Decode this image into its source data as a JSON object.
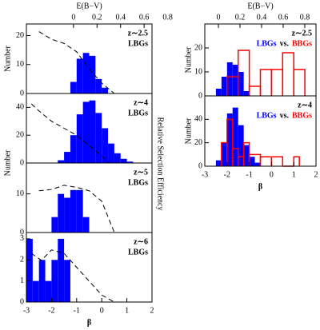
{
  "y2label": "Relative Selection Efficiency",
  "chart_data": [
    {
      "type": "histogram",
      "annotation": "z∼2.5",
      "xlim": [
        -3,
        2
      ],
      "ylim": [
        0,
        24
      ],
      "yticks": [
        0,
        10,
        20
      ],
      "ylabel": "Number",
      "x2label": "E(B−V)",
      "x2lim": [
        -0.4,
        0.667
      ],
      "x2ticks": [
        0,
        0.2,
        0.4,
        0.6,
        0.8
      ],
      "y2lim": [
        0,
        1
      ],
      "series": [
        {
          "name": "LBGs",
          "color": "#0000ff",
          "fill": true,
          "bins": [
            -1.25,
            -1,
            -0.75,
            -0.5,
            -0.25,
            0,
            0.25
          ],
          "values": [
            4,
            12,
            14,
            13,
            5,
            2
          ]
        },
        {
          "type": "line",
          "axis": "y2",
          "color": "#000000",
          "dashed": true,
          "x": [
            -2.5,
            -2,
            -1.5,
            -1,
            -0.5,
            0,
            0.5
          ],
          "values": [
            0.89,
            0.78,
            0.72,
            0.6,
            0.35,
            0.15,
            0
          ]
        }
      ]
    },
    {
      "type": "histogram",
      "annotation": "z∼4",
      "xlim": [
        -3,
        2
      ],
      "ylim": [
        0,
        50
      ],
      "yticks": [
        0,
        20,
        40
      ],
      "ylabel": "Number",
      "y2lim": [
        0,
        1
      ],
      "series": [
        {
          "name": "LBGs",
          "color": "#0000ff",
          "fill": true,
          "bins": [
            -1.75,
            -1.5,
            -1.25,
            -1,
            -0.75,
            -0.5,
            -0.25,
            0,
            0.25,
            0.5,
            0.75,
            1,
            1.25
          ],
          "values": [
            2,
            8,
            20,
            35,
            44,
            45,
            36,
            25,
            14,
            7,
            3,
            1
          ]
        },
        {
          "type": "line",
          "axis": "y2",
          "color": "#000000",
          "dashed": true,
          "x": [
            -2.8,
            -2.5,
            -2,
            -1.5,
            -1,
            -0.5,
            0,
            0.3
          ],
          "values": [
            0.85,
            0.75,
            0.6,
            0.5,
            0.4,
            0.25,
            0.1,
            0
          ]
        }
      ]
    },
    {
      "type": "histogram",
      "annotation": "z∼5",
      "xlim": [
        -3,
        2
      ],
      "ylim": [
        0,
        18
      ],
      "yticks": [
        0,
        10
      ],
      "y2lim": [
        0,
        1
      ],
      "series": [
        {
          "name": "LBGs",
          "color": "#0000ff",
          "fill": true,
          "bins": [
            -2,
            -1.75,
            -1.5,
            -1.25,
            -1,
            -0.75,
            -0.5
          ],
          "values": [
            4,
            10,
            9,
            11,
            11,
            4
          ]
        },
        {
          "type": "line",
          "axis": "y2",
          "color": "#000000",
          "dashed": true,
          "x": [
            -2.5,
            -2,
            -1.5,
            -1,
            -0.5,
            0,
            0.5
          ],
          "values": [
            0.6,
            0.62,
            0.68,
            0.65,
            0.6,
            0.45,
            0
          ]
        }
      ]
    },
    {
      "type": "histogram",
      "annotation": "z∼6",
      "xlim": [
        -3,
        2
      ],
      "ylim": [
        0,
        3.3
      ],
      "yticks": [
        0,
        1,
        2,
        3
      ],
      "xticks": [
        -3,
        -2,
        -1,
        0,
        1,
        2
      ],
      "xlabel": "β",
      "y2lim": [
        0,
        1
      ],
      "series": [
        {
          "name": "LBGs",
          "color": "#0000ff",
          "fill": true,
          "bins": [
            -3,
            -2.75,
            -2.5,
            -2.25,
            -2,
            -1.75,
            -1.5,
            -1.25
          ],
          "values": [
            3,
            1,
            2,
            1,
            2,
            3,
            2
          ]
        },
        {
          "type": "line",
          "axis": "y2",
          "color": "#000000",
          "dashed": true,
          "x": [
            -2.8,
            -2.4,
            -2,
            -1.5,
            -1,
            -0.5,
            0,
            0.5
          ],
          "values": [
            0.7,
            0.6,
            0.75,
            0.7,
            0.5,
            0.3,
            0.1,
            0
          ]
        }
      ]
    },
    {
      "type": "histogram",
      "annotation": "z∼2.5",
      "xlim": [
        -3,
        2
      ],
      "ylim": [
        0,
        30
      ],
      "yticks": [
        0,
        10,
        20
      ],
      "ylabel": "Number",
      "x2label": "E(B−V)",
      "x2lim": [
        -0.126,
        0.904
      ],
      "x2ticks": [
        0,
        0.2,
        0.4,
        0.6,
        0.8
      ],
      "legend_joiner": "vs.",
      "legend_colored": true,
      "series": [
        {
          "name": "LBGs",
          "color": "#0000ff",
          "fill": true,
          "bins": [
            -2.5,
            -2.25,
            -2,
            -1.75,
            -1.5,
            -1.25,
            -1
          ],
          "values": [
            3,
            8,
            14,
            13,
            10,
            2
          ]
        },
        {
          "name": "BBGs",
          "color": "#ff0000",
          "fill": false,
          "bins": [
            -2,
            -1.5,
            -1,
            -0.5,
            0,
            0.5,
            1,
            1.5
          ],
          "values": [
            8,
            19,
            4,
            11,
            11,
            18,
            11
          ]
        }
      ]
    },
    {
      "type": "histogram",
      "annotation": "z∼4",
      "xlim": [
        -3,
        2
      ],
      "ylim": [
        0,
        60
      ],
      "yticks": [
        0,
        20,
        40
      ],
      "ylabel": "Number",
      "xticks": [
        -3,
        -2,
        -1,
        0,
        1,
        2
      ],
      "xlabel": "β",
      "legend_joiner": "vs.",
      "legend_colored": true,
      "series": [
        {
          "name": "LBGs",
          "color": "#0000ff",
          "fill": true,
          "bins": [
            -2.5,
            -2.25,
            -2,
            -1.75,
            -1.5,
            -1.25,
            -1,
            -0.75,
            -0.5
          ],
          "values": [
            5,
            20,
            45,
            50,
            35,
            18,
            8,
            3
          ]
        },
        {
          "name": "BBGs",
          "color": "#ff0000",
          "fill": false,
          "bins": [
            -2.25,
            -2,
            -1.75,
            -1.5,
            -1.25,
            -1,
            -0.5,
            0,
            0.5,
            1,
            1.25
          ],
          "values": [
            20,
            40,
            15,
            8,
            20,
            10,
            8,
            8,
            0,
            8
          ]
        }
      ]
    }
  ]
}
